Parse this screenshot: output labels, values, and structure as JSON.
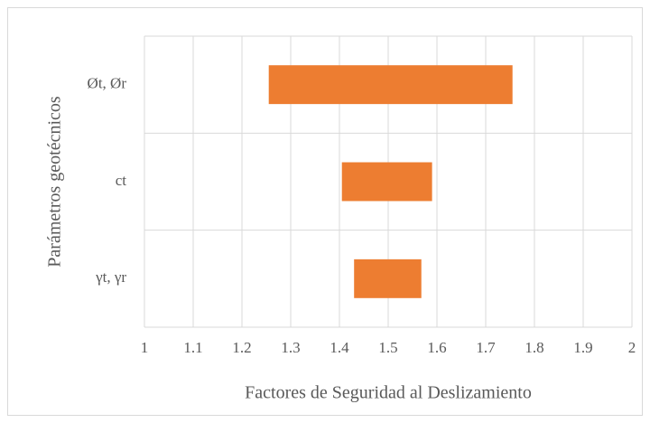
{
  "chart_data": {
    "type": "bar",
    "orientation": "horizontal",
    "x_label": "Factores de Seguridad al Deslizamiento",
    "y_label": "Parámetros geotécnicos",
    "categories": [
      "Øt, Ør",
      "ct",
      "γt, γr"
    ],
    "low": [
      1.255,
      1.405,
      1.43
    ],
    "high": [
      1.755,
      1.59,
      1.568
    ],
    "color": "#ed7d31",
    "xlim": [
      1,
      2
    ],
    "xticks": [
      1,
      1.1,
      1.2,
      1.3,
      1.4,
      1.5,
      1.6,
      1.7,
      1.8,
      1.9,
      2
    ],
    "grid": true
  }
}
